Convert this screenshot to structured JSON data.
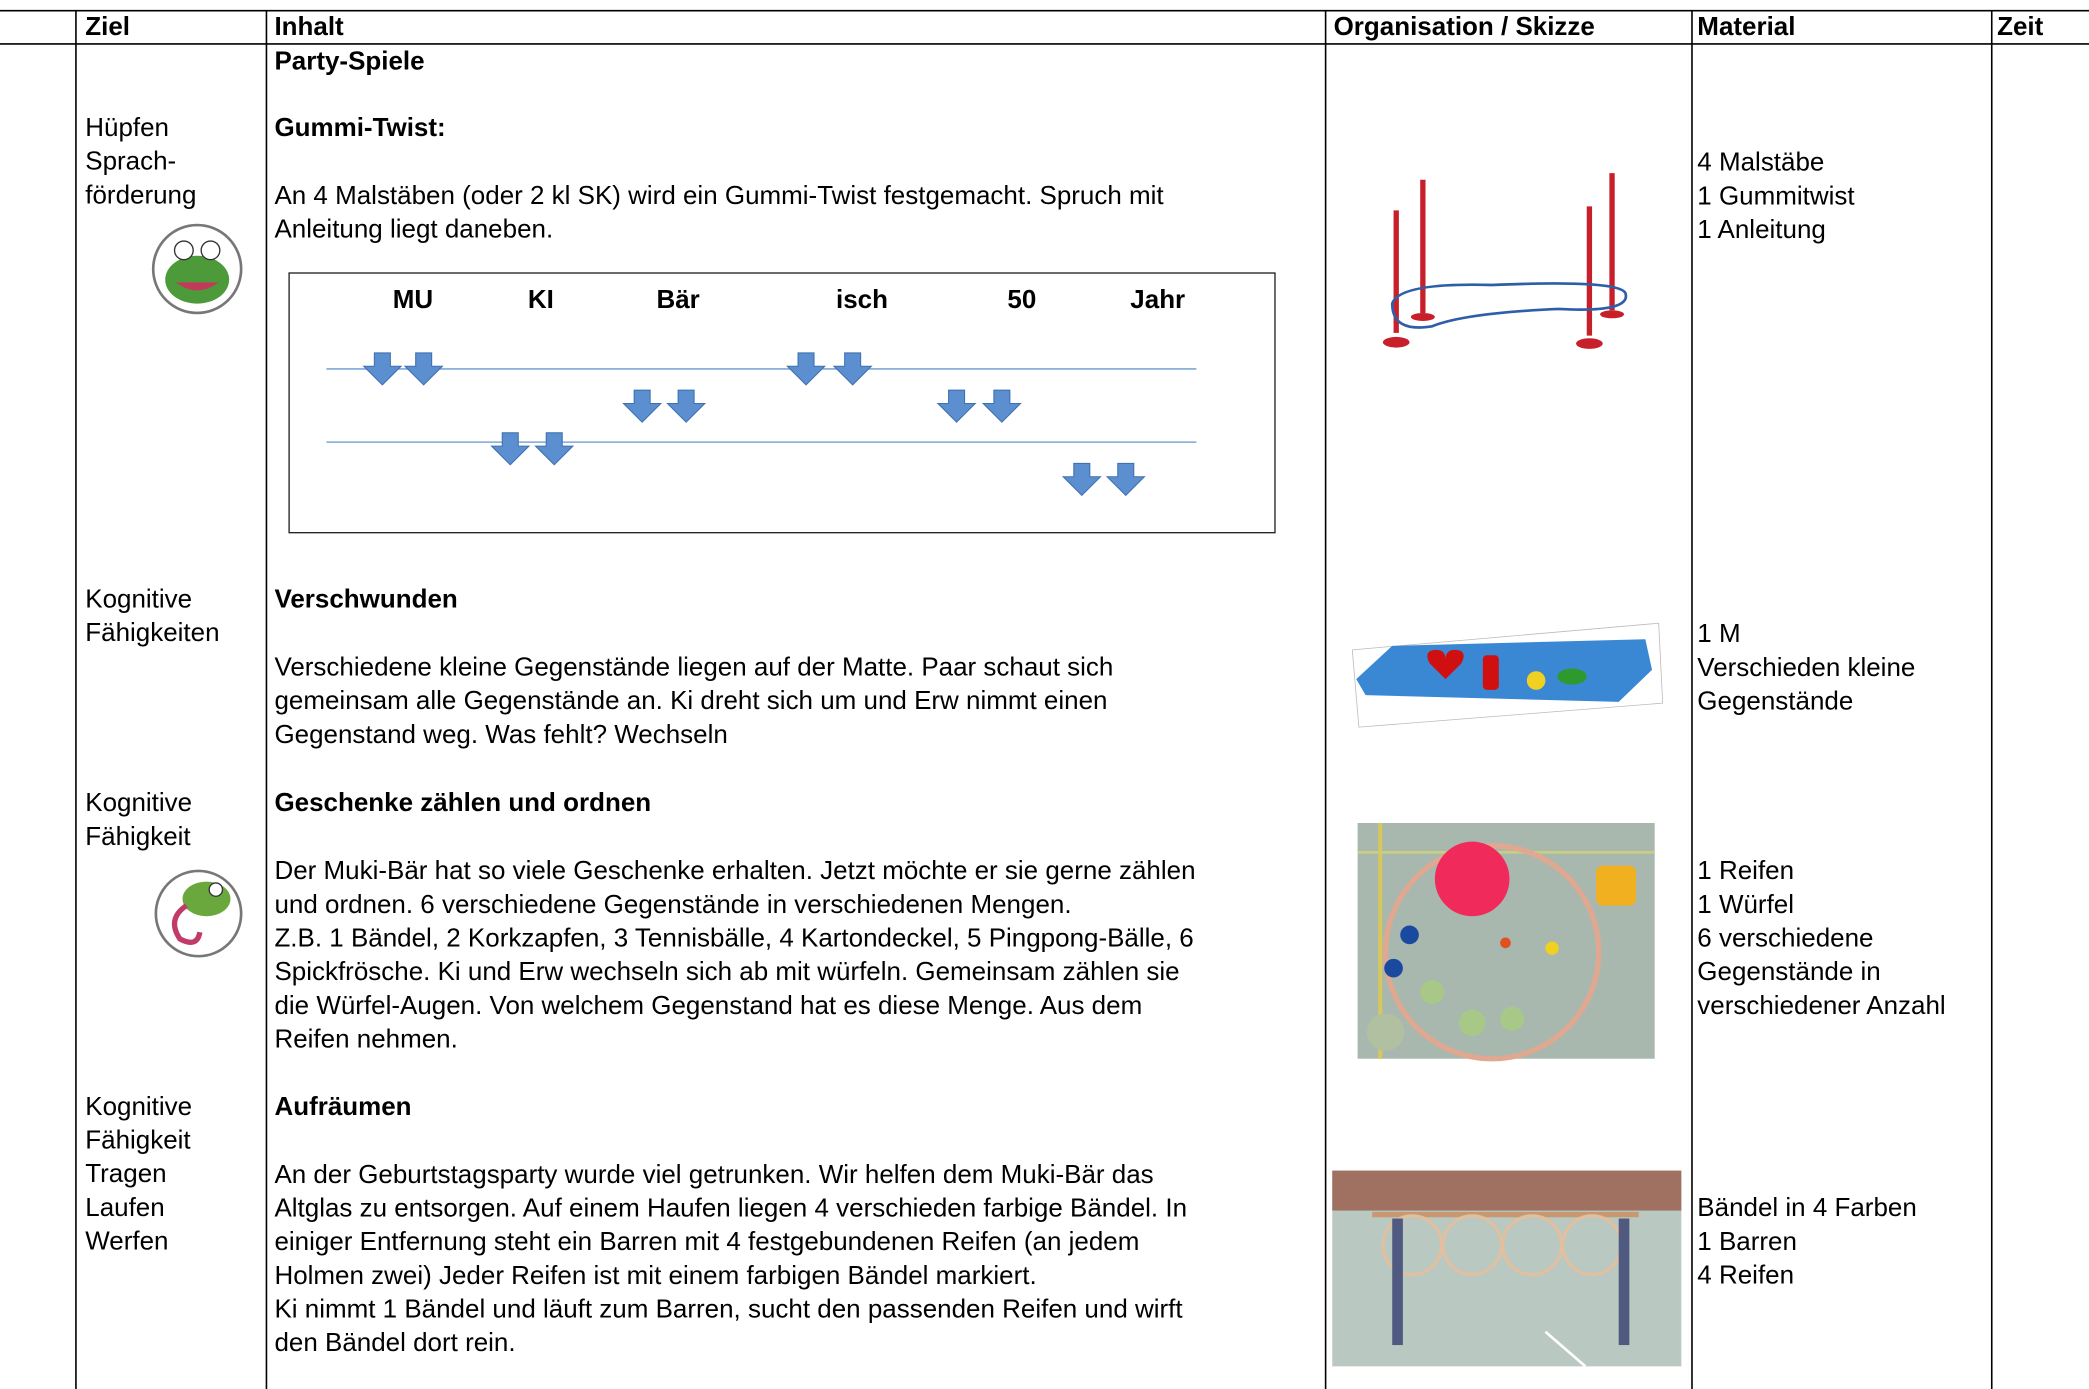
{
  "header": [
    "Ziel",
    "Inhalt",
    "Organisation / Skizze",
    "Material",
    "Zeit"
  ],
  "section_title": "Party-Spiele",
  "rows": [
    {
      "ziel": [
        "Hüpfen",
        "Sprach-",
        "förderung"
      ],
      "title": "Gummi-Twist:",
      "text": [
        "An 4 Malstäben (oder 2 kl SK) wird ein Gummi-Twist festgemacht. Spruch mit",
        "Anleitung liegt daneben."
      ],
      "material": [
        "4 Malstäbe",
        "1 Gummitwist",
        "1 Anleitung"
      ]
    },
    {
      "ziel": [
        "Kognitive",
        "Fähigkeiten"
      ],
      "title": "Verschwunden",
      "text": [
        "Verschiedene kleine Gegenstände liegen auf der Matte. Paar schaut sich",
        "gemeinsam alle Gegenstände an. Ki dreht sich um und Erw nimmt einen",
        "Gegenstand weg. Was fehlt? Wechseln"
      ],
      "material": [
        "1 M",
        "Verschieden kleine",
        "Gegenstände"
      ]
    },
    {
      "ziel": [
        "Kognitive",
        "Fähigkeit"
      ],
      "title": "Geschenke zählen und ordnen",
      "text": [
        "Der Muki-Bär hat so viele Geschenke erhalten. Jetzt möchte er sie gerne zählen",
        "und ordnen. 6 verschiedene Gegenstände in verschiedenen Mengen.",
        "Z.B. 1 Bändel, 2 Korkzapfen, 3 Tennisbälle, 4 Kartondeckel, 5 Pingpong-Bälle, 6",
        "Spickfrösche. Ki und Erw wechseln sich ab mit würfeln. Gemeinsam zählen sie",
        "die Würfel-Augen. Von welchem Gegenstand hat es diese Menge. Aus dem",
        "Reifen nehmen."
      ],
      "material": [
        "1 Reifen",
        "1 Würfel",
        "6 verschiedene",
        "Gegenstände in",
        "verschiedener Anzahl"
      ]
    },
    {
      "ziel": [
        "Kognitive",
        "Fähigkeit",
        "Tragen",
        "Laufen",
        "Werfen"
      ],
      "title": "Aufräumen",
      "text": [
        "An der Geburtstagsparty wurde viel getrunken. Wir helfen dem Muki-Bär das",
        "Altglas zu entsorgen. Auf einem Haufen liegen 4 verschieden farbige Bändel. In",
        "einiger Entfernung steht ein Barren mit 4 festgebundenen Reifen (an jedem",
        "Holmen zwei) Jeder Reifen ist mit einem farbigen Bändel markiert.",
        "Ki nimmt 1 Bändel und läuft zum Barren, sucht den passenden Reifen und wirft",
        "den Bändel dort rein."
      ],
      "material": [
        "Bändel in 4 Farben",
        "1 Barren",
        "4 Reifen"
      ]
    }
  ],
  "diagram_labels": [
    "MU",
    "KI",
    "Bär",
    "isch",
    "50",
    "Jahr"
  ]
}
